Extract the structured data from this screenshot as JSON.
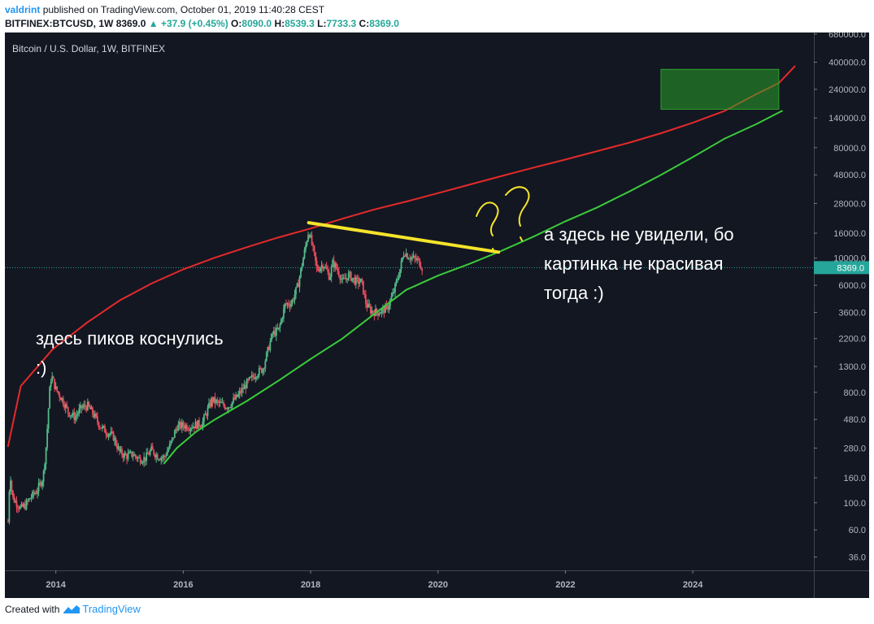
{
  "header": {
    "author": "valdrint",
    "published_text": "published on TradingView.com, October 01, 2019 11:40:28 CEST",
    "symbol": "BITFINEX:BTCUSD, 1W",
    "last": "8369.0",
    "change": "+37.9 (+0.45%)",
    "o_label": "O:",
    "o_value": "8090.0",
    "h_label": "H:",
    "h_value": "8539.3",
    "l_label": "L:",
    "l_value": "7733.3",
    "c_label": "C:",
    "c_value": "8369.0"
  },
  "footer": {
    "created_with": "Created with",
    "brand": "TradingView"
  },
  "chart_data": {
    "type": "candlestick",
    "title": "Bitcoin / U.S. Dollar, 1W, BITFINEX",
    "y_scale": "log",
    "ylim": [
      28,
      700000
    ],
    "xlim": [
      2013.2,
      2025.9
    ],
    "y_ticks": [
      {
        "v": 680000,
        "label": "680000.0"
      },
      {
        "v": 400000,
        "label": "400000.0"
      },
      {
        "v": 240000,
        "label": "240000.0"
      },
      {
        "v": 140000,
        "label": "140000.0"
      },
      {
        "v": 80000,
        "label": "80000.0"
      },
      {
        "v": 48000,
        "label": "48000.0"
      },
      {
        "v": 28000,
        "label": "28000.0"
      },
      {
        "v": 16000,
        "label": "16000.0"
      },
      {
        "v": 10000,
        "label": "10000.0"
      },
      {
        "v": 6000,
        "label": "6000.0"
      },
      {
        "v": 3600,
        "label": "3600.0"
      },
      {
        "v": 2200,
        "label": "2200.0"
      },
      {
        "v": 1300,
        "label": "1300.0"
      },
      {
        "v": 800,
        "label": "800.0"
      },
      {
        "v": 480,
        "label": "480.0"
      },
      {
        "v": 280,
        "label": "280.0"
      },
      {
        "v": 160,
        "label": "160.0"
      },
      {
        "v": 100,
        "label": "100.0"
      },
      {
        "v": 60,
        "label": "60.0"
      },
      {
        "v": 36,
        "label": "36.0"
      }
    ],
    "x_ticks": [
      {
        "v": 2014,
        "label": "2014"
      },
      {
        "v": 2016,
        "label": "2016"
      },
      {
        "v": 2018,
        "label": "2018"
      },
      {
        "v": 2020,
        "label": "2020"
      },
      {
        "v": 2022,
        "label": "2022"
      },
      {
        "v": 2024,
        "label": "2024"
      }
    ],
    "price_anchors": [
      [
        2013.25,
        70
      ],
      [
        2013.28,
        180
      ],
      [
        2013.32,
        110
      ],
      [
        2013.38,
        100
      ],
      [
        2013.45,
        90
      ],
      [
        2013.52,
        95
      ],
      [
        2013.6,
        110
      ],
      [
        2013.7,
        125
      ],
      [
        2013.8,
        160
      ],
      [
        2013.85,
        300
      ],
      [
        2013.9,
        800
      ],
      [
        2013.93,
        1100
      ],
      [
        2014.0,
        850
      ],
      [
        2014.1,
        700
      ],
      [
        2014.2,
        550
      ],
      [
        2014.3,
        500
      ],
      [
        2014.4,
        600
      ],
      [
        2014.5,
        620
      ],
      [
        2014.6,
        520
      ],
      [
        2014.7,
        420
      ],
      [
        2014.8,
        380
      ],
      [
        2014.9,
        350
      ],
      [
        2015.0,
        260
      ],
      [
        2015.1,
        240
      ],
      [
        2015.2,
        250
      ],
      [
        2015.3,
        230
      ],
      [
        2015.4,
        230
      ],
      [
        2015.5,
        270
      ],
      [
        2015.6,
        240
      ],
      [
        2015.7,
        235
      ],
      [
        2015.8,
        300
      ],
      [
        2015.9,
        420
      ],
      [
        2016.0,
        430
      ],
      [
        2016.1,
        420
      ],
      [
        2016.3,
        450
      ],
      [
        2016.45,
        700
      ],
      [
        2016.55,
        650
      ],
      [
        2016.7,
        610
      ],
      [
        2016.85,
        740
      ],
      [
        2017.0,
        950
      ],
      [
        2017.15,
        1150
      ],
      [
        2017.25,
        1250
      ],
      [
        2017.4,
        2400
      ],
      [
        2017.5,
        2600
      ],
      [
        2017.6,
        4200
      ],
      [
        2017.7,
        4300
      ],
      [
        2017.8,
        6000
      ],
      [
        2017.9,
        11000
      ],
      [
        2017.97,
        17000
      ],
      [
        2018.05,
        11000
      ],
      [
        2018.1,
        8000
      ],
      [
        2018.2,
        9000
      ],
      [
        2018.3,
        7000
      ],
      [
        2018.35,
        9300
      ],
      [
        2018.45,
        7500
      ],
      [
        2018.5,
        6400
      ],
      [
        2018.6,
        7300
      ],
      [
        2018.7,
        6500
      ],
      [
        2018.8,
        6400
      ],
      [
        2018.87,
        4200
      ],
      [
        2018.95,
        3700
      ],
      [
        2019.05,
        3600
      ],
      [
        2019.2,
        3900
      ],
      [
        2019.3,
        5200
      ],
      [
        2019.4,
        8000
      ],
      [
        2019.47,
        11500
      ],
      [
        2019.52,
        10500
      ],
      [
        2019.6,
        10000
      ],
      [
        2019.7,
        9500
      ],
      [
        2019.75,
        8369
      ]
    ],
    "series": [
      {
        "color": "#e52a2a",
        "points": [
          [
            2013.25,
            290
          ],
          [
            2013.45,
            900
          ],
          [
            2013.95,
            1800
          ],
          [
            2014.5,
            3000
          ],
          [
            2015.0,
            4500
          ],
          [
            2015.5,
            6200
          ],
          [
            2016.0,
            8100
          ],
          [
            2016.5,
            10100
          ],
          [
            2017.0,
            12300
          ],
          [
            2017.5,
            14800
          ],
          [
            2018.0,
            17500
          ],
          [
            2018.5,
            21000
          ],
          [
            2019.0,
            25000
          ],
          [
            2019.5,
            29000
          ],
          [
            2020.0,
            34000
          ],
          [
            2020.5,
            40000
          ],
          [
            2021.0,
            47000
          ],
          [
            2021.5,
            55000
          ],
          [
            2022.0,
            64000
          ],
          [
            2022.5,
            75000
          ],
          [
            2023.0,
            88000
          ],
          [
            2023.5,
            105000
          ],
          [
            2024.0,
            128000
          ],
          [
            2024.5,
            160000
          ],
          [
            2025.0,
            220000
          ],
          [
            2025.35,
            270000
          ],
          [
            2025.6,
            370000
          ]
        ]
      },
      {
        "color": "#3acb3a",
        "points": [
          [
            2015.7,
            210
          ],
          [
            2015.9,
            280
          ],
          [
            2016.2,
            380
          ],
          [
            2016.5,
            480
          ],
          [
            2017.0,
            680
          ],
          [
            2017.5,
            1000
          ],
          [
            2018.0,
            1500
          ],
          [
            2018.5,
            2200
          ],
          [
            2019.0,
            3500
          ],
          [
            2019.5,
            5500
          ],
          [
            2020.0,
            7200
          ],
          [
            2020.5,
            9000
          ],
          [
            2021.0,
            11500
          ],
          [
            2021.5,
            15000
          ],
          [
            2022.0,
            20000
          ],
          [
            2022.5,
            26000
          ],
          [
            2023.0,
            35000
          ],
          [
            2023.5,
            48000
          ],
          [
            2024.0,
            67000
          ],
          [
            2024.5,
            95000
          ],
          [
            2025.0,
            125000
          ],
          [
            2025.4,
            160000
          ]
        ]
      },
      {
        "color": "#f5e42b",
        "points": [
          [
            2017.97,
            19500
          ],
          [
            2020.95,
            11200
          ]
        ]
      }
    ],
    "current_price": 8369,
    "current_price_label": "8369.0",
    "target_zone": {
      "x": [
        2023.5,
        2025.35
      ],
      "y": [
        165000,
        350000
      ]
    },
    "annotations": {
      "left": [
        "здесь пиков коснулись",
        ":)"
      ],
      "right": [
        "а здесь не увидели, бо",
        "картинка не красивая",
        "тогда :)"
      ]
    }
  }
}
